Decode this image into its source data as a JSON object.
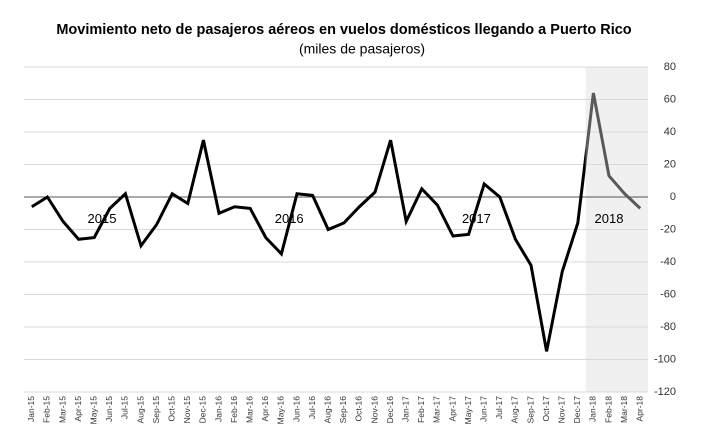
{
  "chart_data": {
    "type": "line",
    "title": "Movimiento neto de pasajeros aéreos en vuelos domésticos llegando a Puerto Rico",
    "subtitle": "(miles de pasajeros)",
    "categories": [
      "Jan-15",
      "Feb-15",
      "Mar-15",
      "Apr-15",
      "May-15",
      "Jun-15",
      "Jul-15",
      "Aug-15",
      "Sep-15",
      "Oct-15",
      "Nov-15",
      "Dec-15",
      "Jan-16",
      "Feb-16",
      "Mar-16",
      "Apr-16",
      "May-16",
      "Jun-16",
      "Jul-16",
      "Aug-16",
      "Sep-16",
      "Oct-16",
      "Nov-16",
      "Dec-16",
      "Jan-17",
      "Feb-17",
      "Mar-17",
      "Apr-17",
      "May-17",
      "Jun-17",
      "Jul-17",
      "Aug-17",
      "Sep-17",
      "Oct-17",
      "Nov-17",
      "Dec-17",
      "Jan-18",
      "Feb-18",
      "Mar-18",
      "Apr-18"
    ],
    "values": [
      -6,
      0,
      -15,
      -26,
      -25,
      -7,
      2,
      -30,
      -17,
      2,
      -4,
      35,
      -10,
      -6,
      -7,
      -25,
      -35,
      2,
      1,
      -20,
      -16,
      -6,
      3,
      35,
      -15,
      5,
      -5,
      -24,
      -23,
      8,
      0,
      -26,
      -42,
      -95,
      -46,
      -16,
      64,
      13,
      2,
      -7
    ],
    "color": "#000000",
    "highlight": {
      "from": "Jan-18",
      "color": "#595959",
      "background": "#f0f0f0"
    },
    "annotations": [
      "2015",
      "2016",
      "2017",
      "2018"
    ],
    "ylim": [
      -120,
      80
    ],
    "yticks": [
      80,
      60,
      40,
      20,
      0,
      -20,
      -40,
      -60,
      -80,
      -100,
      -120
    ],
    "grid": true
  }
}
